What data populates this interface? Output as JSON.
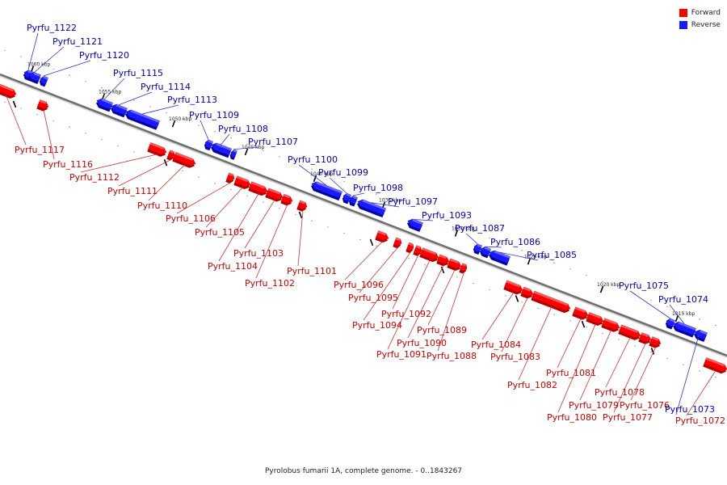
{
  "caption": "Pyrolobus fumarii 1A, complete genome. - 0..1843267",
  "colors": {
    "forward": "#ff0000",
    "reverse": "#1a1aff",
    "forward_label": "#cc0000",
    "reverse_label": "#0000bb"
  },
  "legend": {
    "forward": "Forward",
    "reverse": "Reverse"
  },
  "ticks": [
    "1060 kbp",
    "1055 kbp",
    "1050 kbp",
    "1045 kbp",
    "1040 kbp",
    "1035 kbp",
    "1030 kbp",
    "1025 kbp",
    "1020 kbp",
    "1015 kbp"
  ],
  "genes": [
    {
      "name": "Pyrfu_1122",
      "strand": "reverse"
    },
    {
      "name": "Pyrfu_1121",
      "strand": "reverse"
    },
    {
      "name": "Pyrfu_1120",
      "strand": "reverse"
    },
    {
      "name": "Pyrfu_1117",
      "strand": "forward"
    },
    {
      "name": "Pyrfu_1116",
      "strand": "forward"
    },
    {
      "name": "Pyrfu_1115",
      "strand": "reverse"
    },
    {
      "name": "Pyrfu_1114",
      "strand": "reverse"
    },
    {
      "name": "Pyrfu_1113",
      "strand": "reverse"
    },
    {
      "name": "Pyrfu_1112",
      "strand": "forward"
    },
    {
      "name": "Pyrfu_1111",
      "strand": "forward"
    },
    {
      "name": "Pyrfu_1110",
      "strand": "forward"
    },
    {
      "name": "Pyrfu_1109",
      "strand": "reverse"
    },
    {
      "name": "Pyrfu_1108",
      "strand": "reverse"
    },
    {
      "name": "Pyrfu_1107",
      "strand": "reverse"
    },
    {
      "name": "Pyrfu_1106",
      "strand": "forward"
    },
    {
      "name": "Pyrfu_1105",
      "strand": "forward"
    },
    {
      "name": "Pyrfu_1104",
      "strand": "forward"
    },
    {
      "name": "Pyrfu_1103",
      "strand": "forward"
    },
    {
      "name": "Pyrfu_1102",
      "strand": "forward"
    },
    {
      "name": "Pyrfu_1101",
      "strand": "forward"
    },
    {
      "name": "Pyrfu_1100",
      "strand": "reverse"
    },
    {
      "name": "Pyrfu_1099",
      "strand": "reverse"
    },
    {
      "name": "Pyrfu_1098",
      "strand": "reverse"
    },
    {
      "name": "Pyrfu_1097",
      "strand": "reverse"
    },
    {
      "name": "Pyrfu_1096",
      "strand": "forward"
    },
    {
      "name": "Pyrfu_1095",
      "strand": "forward"
    },
    {
      "name": "Pyrfu_1094",
      "strand": "forward"
    },
    {
      "name": "Pyrfu_1093",
      "strand": "reverse"
    },
    {
      "name": "Pyrfu_1092",
      "strand": "forward"
    },
    {
      "name": "Pyrfu_1091",
      "strand": "forward"
    },
    {
      "name": "Pyrfu_1090",
      "strand": "forward"
    },
    {
      "name": "Pyrfu_1089",
      "strand": "forward"
    },
    {
      "name": "Pyrfu_1088",
      "strand": "forward"
    },
    {
      "name": "Pyrfu_1087",
      "strand": "reverse"
    },
    {
      "name": "Pyrfu_1086",
      "strand": "reverse"
    },
    {
      "name": "Pyrfu_1085",
      "strand": "reverse"
    },
    {
      "name": "Pyrfu_1084",
      "strand": "forward"
    },
    {
      "name": "Pyrfu_1083",
      "strand": "forward"
    },
    {
      "name": "Pyrfu_1082",
      "strand": "forward"
    },
    {
      "name": "Pyrfu_1081",
      "strand": "forward"
    },
    {
      "name": "Pyrfu_1080",
      "strand": "forward"
    },
    {
      "name": "Pyrfu_1079",
      "strand": "forward"
    },
    {
      "name": "Pyrfu_1078",
      "strand": "forward"
    },
    {
      "name": "Pyrfu_1077",
      "strand": "forward"
    },
    {
      "name": "Pyrfu_1076",
      "strand": "forward"
    },
    {
      "name": "Pyrfu_1075",
      "strand": "reverse"
    },
    {
      "name": "Pyrfu_1074",
      "strand": "reverse"
    },
    {
      "name": "Pyrfu_1073",
      "strand": "reverse"
    },
    {
      "name": "Pyrfu_1072",
      "strand": "forward"
    }
  ]
}
